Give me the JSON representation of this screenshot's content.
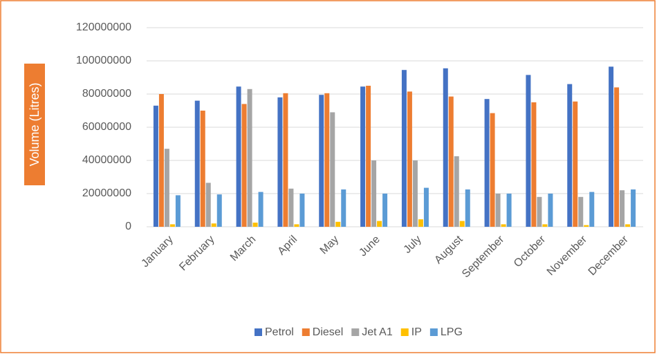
{
  "chart_data": {
    "type": "bar",
    "y_label": "Volume (Litres)",
    "categories": [
      "January",
      "February",
      "March",
      "April",
      "May",
      "June",
      "July",
      "August",
      "September",
      "October",
      "November",
      "December"
    ],
    "series": [
      {
        "name": "Petrol",
        "color": "#4472c4",
        "values": [
          73000000,
          76000000,
          84500000,
          78000000,
          79500000,
          84500000,
          94500000,
          95500000,
          77000000,
          91500000,
          86000000,
          96500000
        ]
      },
      {
        "name": "Diesel",
        "color": "#ed7d31",
        "values": [
          80000000,
          70000000,
          74000000,
          80500000,
          80500000,
          85000000,
          81500000,
          78500000,
          68500000,
          75000000,
          75500000,
          84000000
        ]
      },
      {
        "name": "Jet A1",
        "color": "#a5a5a5",
        "values": [
          47000000,
          26500000,
          83000000,
          23000000,
          69000000,
          40000000,
          40000000,
          42500000,
          20000000,
          18000000,
          18000000,
          22000000
        ]
      },
      {
        "name": "IP",
        "color": "#ffc000",
        "values": [
          1500000,
          2000000,
          2500000,
          1500000,
          3000000,
          3500000,
          4500000,
          3500000,
          1500000,
          1500000,
          1000000,
          1500000
        ]
      },
      {
        "name": "LPG",
        "color": "#5b9bd5",
        "values": [
          19000000,
          19500000,
          21000000,
          20000000,
          22500000,
          20000000,
          23500000,
          22500000,
          20000000,
          20000000,
          21000000,
          22500000
        ]
      }
    ],
    "ylim": [
      0,
      120000000
    ],
    "yticks": [
      0,
      20000000,
      40000000,
      60000000,
      80000000,
      100000000,
      120000000
    ],
    "grid": true,
    "legend": "bottom"
  }
}
